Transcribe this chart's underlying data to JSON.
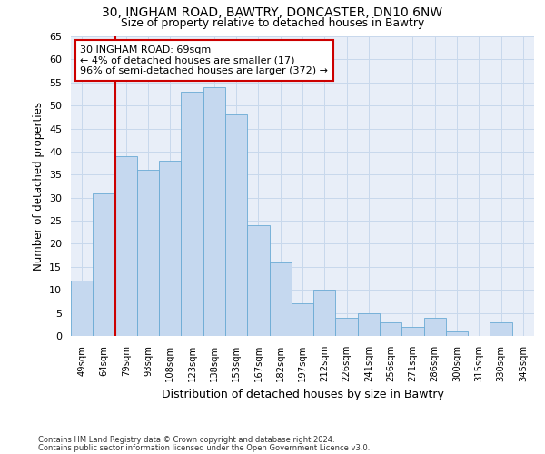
{
  "title1": "30, INGHAM ROAD, BAWTRY, DONCASTER, DN10 6NW",
  "title2": "Size of property relative to detached houses in Bawtry",
  "xlabel": "Distribution of detached houses by size in Bawtry",
  "ylabel": "Number of detached properties",
  "categories": [
    "49sqm",
    "64sqm",
    "79sqm",
    "93sqm",
    "108sqm",
    "123sqm",
    "138sqm",
    "153sqm",
    "167sqm",
    "182sqm",
    "197sqm",
    "212sqm",
    "226sqm",
    "241sqm",
    "256sqm",
    "271sqm",
    "286sqm",
    "300sqm",
    "315sqm",
    "330sqm",
    "345sqm"
  ],
  "values": [
    12,
    31,
    39,
    36,
    38,
    53,
    54,
    48,
    24,
    16,
    7,
    10,
    4,
    5,
    3,
    2,
    4,
    1,
    0,
    3,
    0
  ],
  "bar_color": "#c5d8ef",
  "bar_edge_color": "#6aaad4",
  "annotation_text_line1": "30 INGHAM ROAD: 69sqm",
  "annotation_text_line2": "← 4% of detached houses are smaller (17)",
  "annotation_text_line3": "96% of semi-detached houses are larger (372) →",
  "annotation_box_facecolor": "#ffffff",
  "annotation_box_edgecolor": "#cc0000",
  "redline_x": 1.5,
  "redline_color": "#cc0000",
  "ylim": [
    0,
    65
  ],
  "yticks": [
    0,
    5,
    10,
    15,
    20,
    25,
    30,
    35,
    40,
    45,
    50,
    55,
    60,
    65
  ],
  "grid_color": "#c8d8ec",
  "plot_bgcolor": "#e8eef8",
  "footer1": "Contains HM Land Registry data © Crown copyright and database right 2024.",
  "footer2": "Contains public sector information licensed under the Open Government Licence v3.0."
}
